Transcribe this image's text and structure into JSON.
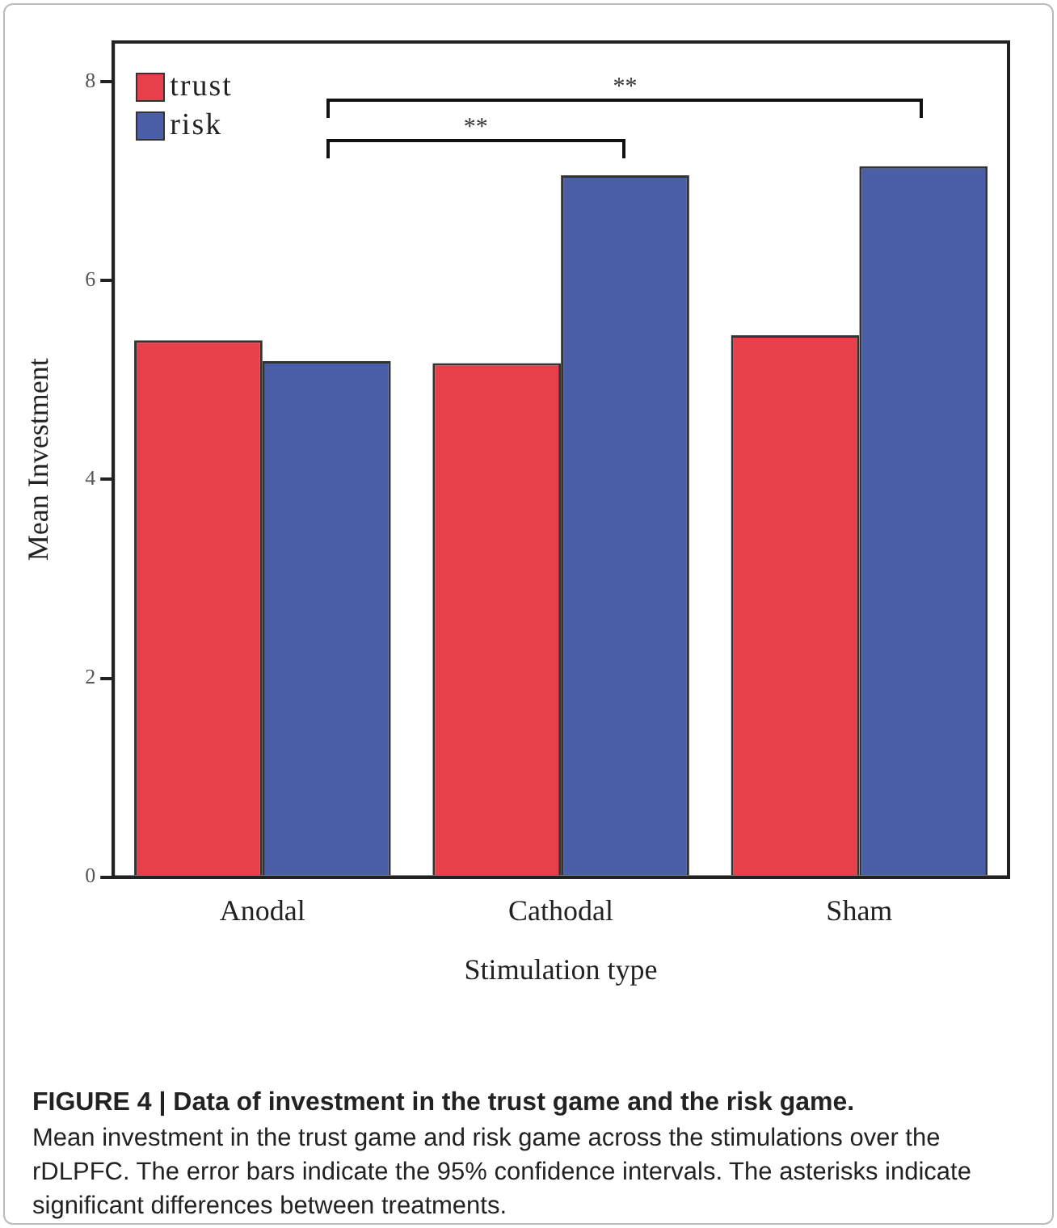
{
  "chart_data": {
    "type": "bar",
    "title": "FIGURE 4 | Data of investment in the trust game and the risk game.",
    "xlabel": "Stimulation type",
    "ylabel": "Mean Investment",
    "categories": [
      "Anodal",
      "Cathodal",
      "Sham"
    ],
    "series": [
      {
        "name": "trust",
        "color": "#e8404a",
        "values": [
          5.4,
          5.17,
          5.45
        ]
      },
      {
        "name": "risk",
        "color": "#4a5fa8",
        "values": [
          5.19,
          7.06,
          7.15
        ]
      }
    ],
    "ylim": [
      0,
      8.4
    ],
    "yticks": [
      0,
      2,
      4,
      6,
      8
    ],
    "grid": false,
    "legend": "top left",
    "annotations": [
      "**",
      "**",
      "Mean investment in the trust game and risk game across the stimulations over the rDLPFC. The error bars indicate the 95% confidence intervals. The asterisks indicate significant differences between treatments."
    ]
  }
}
